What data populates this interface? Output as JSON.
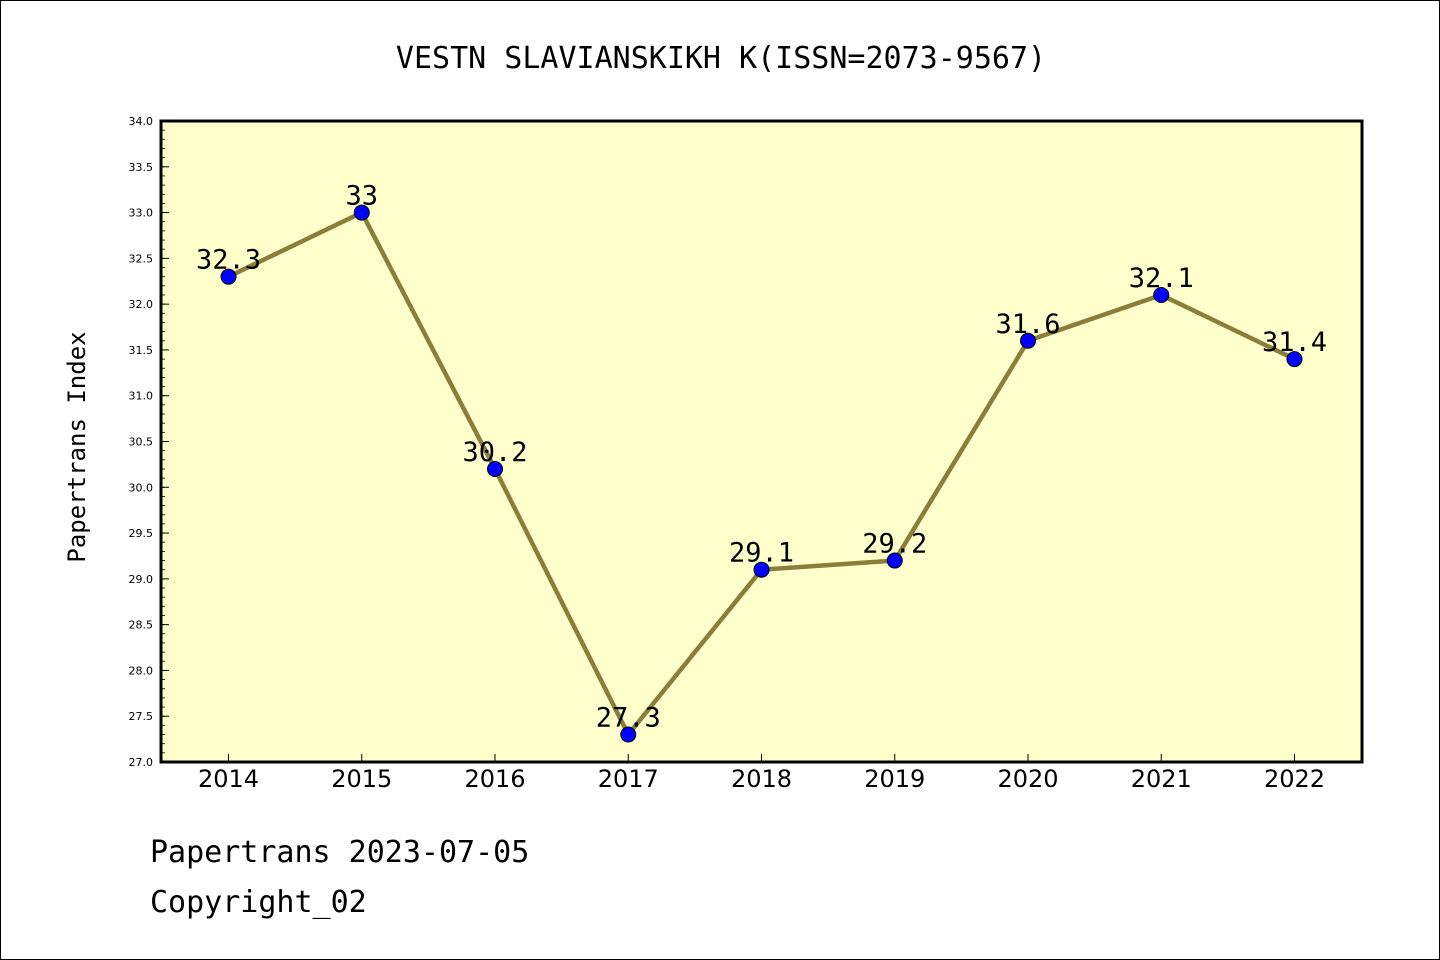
{
  "chart_data": {
    "type": "line",
    "title": "VESTN SLAVIANSKIKH K(ISSN=2073-9567)",
    "xlabel": "",
    "ylabel": "Papertrans Index",
    "categories": [
      "2014",
      "2015",
      "2016",
      "2017",
      "2018",
      "2019",
      "2020",
      "2021",
      "2022"
    ],
    "series": [
      {
        "values": [
          32.3,
          33,
          30.2,
          27.3,
          29.1,
          29.2,
          31.6,
          32.1,
          31.4
        ],
        "labels": [
          "32.3",
          "33",
          "30.2",
          "27.3",
          "29.1",
          "29.2",
          "31.6",
          "32.1",
          "31.4"
        ]
      }
    ],
    "ylim": [
      27.0,
      34.0
    ],
    "yticks": [
      "27.0",
      "27.5",
      "28.0",
      "28.5",
      "29.0",
      "29.5",
      "30.0",
      "30.5",
      "31.0",
      "31.5",
      "32.0",
      "32.5",
      "33.0",
      "33.5",
      "34.0"
    ],
    "grid": false,
    "legend": "none",
    "colors": {
      "plot_background": "#ffffcc",
      "line": "#8b7d3a",
      "marker": "#0000ff"
    }
  },
  "footer": {
    "date_text": "Papertrans 2023-07-05",
    "copyright_text": "Copyright_02"
  }
}
